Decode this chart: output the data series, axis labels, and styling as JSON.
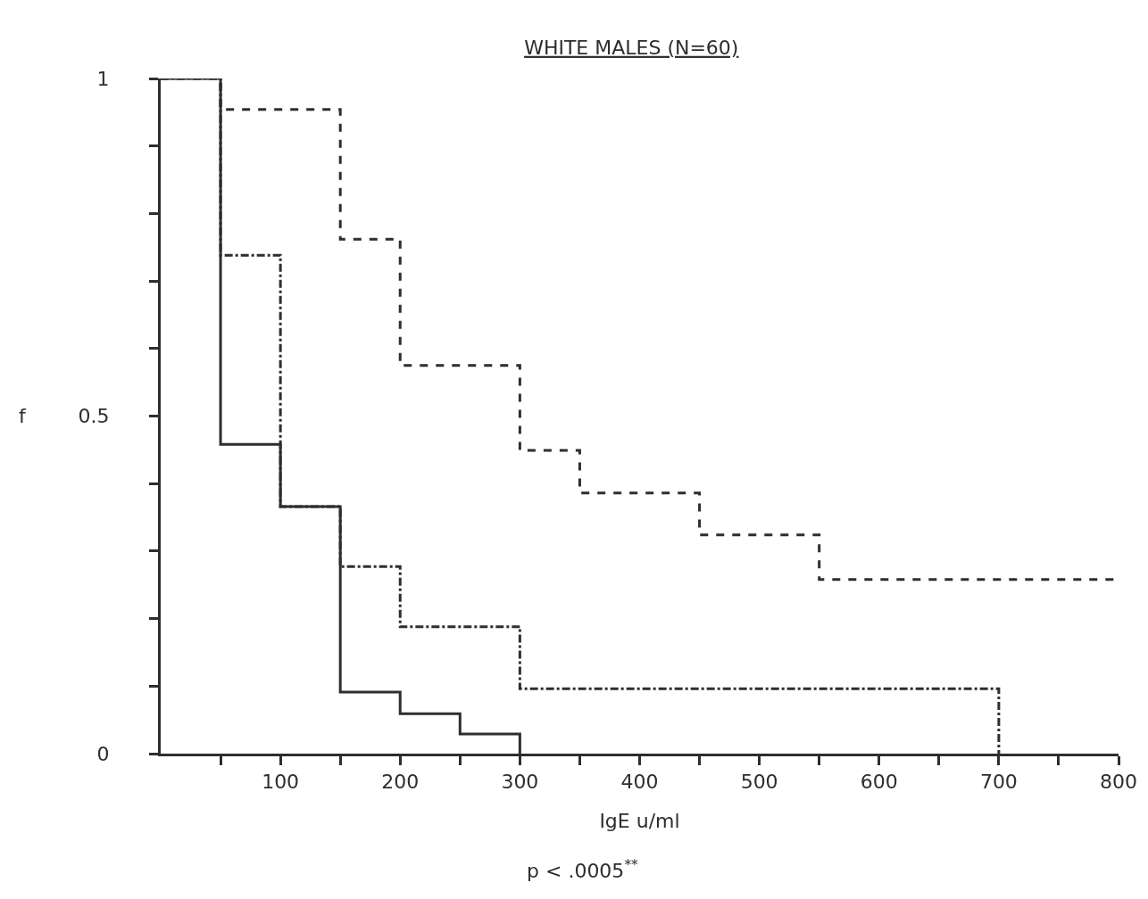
{
  "chart_data": {
    "type": "step",
    "title": "WHITE MALES (N=60)",
    "xlabel": "IgE u/ml",
    "ylabel": "f",
    "annotations": [
      "p < .0005$^{**}$"
    ],
    "series": [
      {
        "color": "#2e2e2e",
        "line_style": "solid",
        "x": [
          0,
          50,
          100,
          150,
          200,
          250,
          300,
          300
        ],
        "values": [
          1,
          0.458,
          0.366,
          0.091,
          0.059,
          0.029,
          0.029,
          0
        ]
      },
      {
        "color": "#2e2e2e",
        "line_style": "dashed",
        "x": [
          0,
          50,
          150,
          200,
          300,
          350,
          450,
          550,
          800
        ],
        "values": [
          1,
          0.954,
          0.762,
          0.575,
          0.449,
          0.386,
          0.324,
          0.258,
          0.258
        ]
      },
      {
        "color": "#2e2e2e",
        "line_style": "dashdot",
        "x": [
          0,
          50,
          100,
          150,
          200,
          300,
          700,
          700
        ],
        "values": [
          1,
          0.738,
          0.366,
          0.277,
          0.188,
          0.096,
          0.096,
          0
        ]
      }
    ],
    "xlim": [
      0,
      800
    ],
    "xticks": [
      {
        "value": 50,
        "label": null
      },
      100,
      {
        "value": 150,
        "label": null
      },
      200,
      {
        "value": 250,
        "label": null
      },
      300,
      {
        "value": 350,
        "label": null
      },
      400,
      {
        "value": 450,
        "label": null
      },
      500,
      {
        "value": 550,
        "label": null
      },
      600,
      {
        "value": 650,
        "label": null
      },
      700,
      {
        "value": 750,
        "label": null
      },
      800
    ],
    "ylim": [
      0,
      1
    ],
    "yticks": [
      0,
      {
        "value": 0.1,
        "label": null
      },
      {
        "value": 0.2,
        "label": null
      },
      {
        "value": 0.3,
        "label": null
      },
      {
        "value": 0.4,
        "label": null
      },
      0.5,
      {
        "value": 0.6,
        "label": null
      },
      {
        "value": 0.7,
        "label": null
      },
      {
        "value": 0.8,
        "label": null
      },
      {
        "value": 0.9,
        "label": null
      },
      1
    ]
  }
}
